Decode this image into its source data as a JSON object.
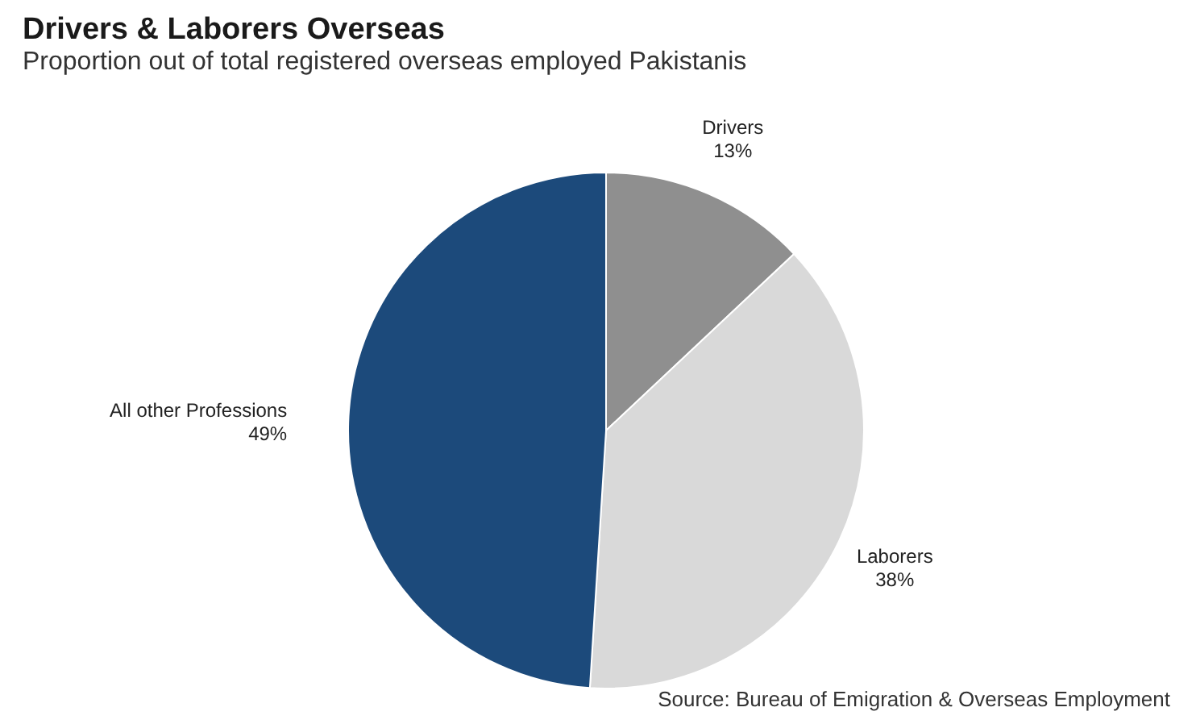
{
  "chart_data": {
    "type": "pie",
    "title": "Drivers & Laborers Overseas",
    "subtitle": "Proportion out of total registered overseas employed Pakistanis",
    "categories": [
      "Drivers",
      "Laborers",
      "All other Professions"
    ],
    "values": [
      13,
      38,
      49
    ],
    "value_labels": [
      "13%",
      "38%",
      "49%"
    ],
    "colors": [
      "#8f8f8f",
      "#d9d9d9",
      "#1c4a7b"
    ],
    "annotations": [
      "Source: Bureau of Emigration & Overseas Employment"
    ],
    "legend": false
  }
}
